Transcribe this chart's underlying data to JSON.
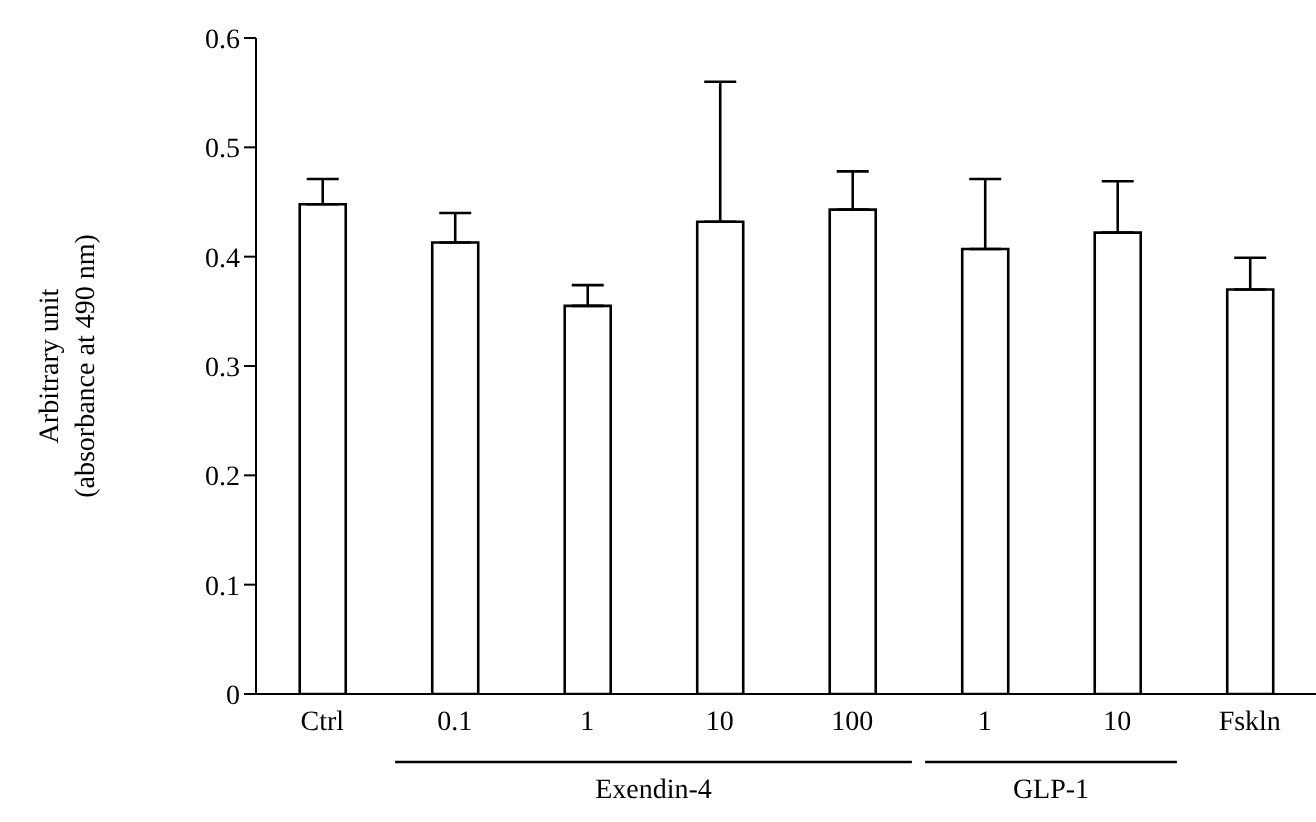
{
  "chart_data": {
    "type": "bar",
    "ylabel": "Arbitrary unit\n(absorbance at 490 nm)",
    "categories": [
      "Ctrl",
      "0.1",
      "1",
      "10",
      "100",
      "1",
      "10",
      "Fskln"
    ],
    "values": [
      0.448,
      0.413,
      0.355,
      0.432,
      0.443,
      0.407,
      0.422,
      0.37
    ],
    "errors": [
      [
        0.448,
        0.471
      ],
      [
        0.413,
        0.44
      ],
      [
        0.355,
        0.374
      ],
      [
        0.432,
        0.56
      ],
      [
        0.443,
        0.478
      ],
      [
        0.407,
        0.471
      ],
      [
        0.422,
        0.469
      ],
      [
        0.37,
        0.399
      ]
    ],
    "color": "#ffffff",
    "ylim": [
      0,
      0.6
    ],
    "yticks": [
      0,
      0.1,
      0.2,
      0.3,
      0.4,
      0.5,
      0.6
    ],
    "grid": false,
    "legend": false,
    "annotations": [
      "Exendin-4",
      "GLP-1"
    ]
  }
}
